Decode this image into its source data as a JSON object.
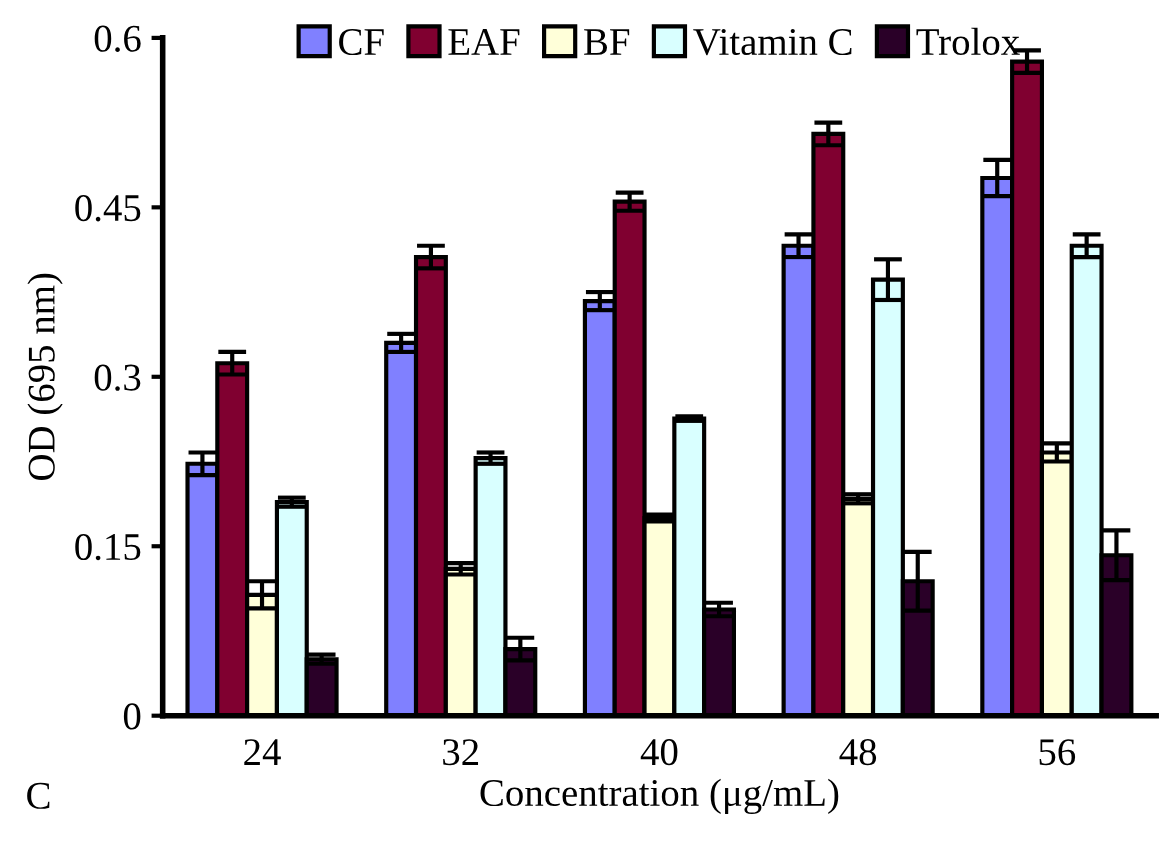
{
  "chart_data": {
    "type": "bar",
    "xlabel": "Concentration (μg/mL)",
    "ylabel": "OD (695 nm)",
    "categories": [
      "24",
      "32",
      "40",
      "48",
      "56"
    ],
    "series": [
      {
        "name": "CF",
        "color": "#8080ff",
        "values": [
          0.223,
          0.33,
          0.367,
          0.416,
          0.476
        ],
        "errors": [
          0.01,
          0.008,
          0.008,
          0.01,
          0.016
        ]
      },
      {
        "name": "EAF",
        "color": "#800030",
        "values": [
          0.312,
          0.406,
          0.455,
          0.515,
          0.579
        ],
        "errors": [
          0.01,
          0.01,
          0.008,
          0.01,
          0.01
        ]
      },
      {
        "name": "BF",
        "color": "#ffffd9",
        "values": [
          0.107,
          0.13,
          0.175,
          0.192,
          0.233
        ],
        "errors": [
          0.012,
          0.005,
          0.003,
          0.004,
          0.008
        ]
      },
      {
        "name": "Vitamin C",
        "color": "#d9ffff",
        "values": [
          0.189,
          0.228,
          0.263,
          0.386,
          0.416
        ],
        "errors": [
          0.004,
          0.005,
          0.002,
          0.018,
          0.01
        ]
      },
      {
        "name": "Trolox",
        "color": "#2a0028",
        "values": [
          0.05,
          0.059,
          0.094,
          0.119,
          0.142
        ],
        "errors": [
          0.004,
          0.01,
          0.006,
          0.026,
          0.022
        ]
      }
    ],
    "ylim": [
      0,
      0.6
    ],
    "yticks": [
      0,
      0.15,
      0.3,
      0.45,
      0.6
    ],
    "grid": false,
    "legend": "top",
    "annotations": [
      "C"
    ]
  }
}
